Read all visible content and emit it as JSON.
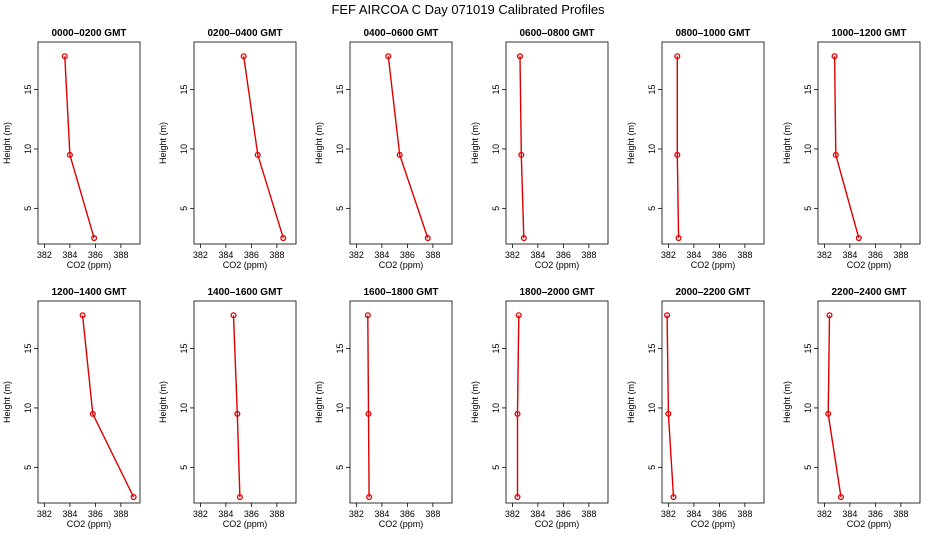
{
  "figure_title": "FEF AIRCOA C  Day 071019  Calibrated Profiles",
  "colors": {
    "series": "#dd0000",
    "axes": "#000000"
  },
  "chart_data": [
    {
      "type": "line",
      "title": "0000–0200 GMT",
      "xlabel": "CO2 (ppm)",
      "ylabel": "Height (m)",
      "xlim": [
        381.5,
        389.5
      ],
      "ylim": [
        2,
        19
      ],
      "xticks": [
        382,
        384,
        386,
        388
      ],
      "yticks": [
        5,
        10,
        15
      ],
      "series": [
        {
          "x": [
            385.9,
            384.0,
            383.6
          ],
          "y": [
            2.5,
            9.5,
            17.8
          ]
        }
      ]
    },
    {
      "type": "line",
      "title": "0200–0400 GMT",
      "xlabel": "CO2 (ppm)",
      "ylabel": "Height (m)",
      "xlim": [
        381.5,
        389.5
      ],
      "ylim": [
        2,
        19
      ],
      "xticks": [
        382,
        384,
        386,
        388
      ],
      "yticks": [
        5,
        10,
        15
      ],
      "series": [
        {
          "x": [
            388.5,
            386.5,
            385.4
          ],
          "y": [
            2.5,
            9.5,
            17.8
          ]
        }
      ]
    },
    {
      "type": "line",
      "title": "0400–0600 GMT",
      "xlabel": "CO2 (ppm)",
      "ylabel": "Height (m)",
      "xlim": [
        381.5,
        389.5
      ],
      "ylim": [
        2,
        19
      ],
      "xticks": [
        382,
        384,
        386,
        388
      ],
      "yticks": [
        5,
        10,
        15
      ],
      "series": [
        {
          "x": [
            387.6,
            385.4,
            384.5
          ],
          "y": [
            2.5,
            9.5,
            17.8
          ]
        }
      ]
    },
    {
      "type": "line",
      "title": "0600–0800 GMT",
      "xlabel": "CO2 (ppm)",
      "ylabel": "Height (m)",
      "xlim": [
        381.5,
        389.5
      ],
      "ylim": [
        2,
        19
      ],
      "xticks": [
        382,
        384,
        386,
        388
      ],
      "yticks": [
        5,
        10,
        15
      ],
      "series": [
        {
          "x": [
            382.9,
            382.7,
            382.6
          ],
          "y": [
            2.5,
            9.5,
            17.8
          ]
        }
      ]
    },
    {
      "type": "line",
      "title": "0800–1000 GMT",
      "xlabel": "CO2 (ppm)",
      "ylabel": "Height (m)",
      "xlim": [
        381.5,
        389.5
      ],
      "ylim": [
        2,
        19
      ],
      "xticks": [
        382,
        384,
        386,
        388
      ],
      "yticks": [
        5,
        10,
        15
      ],
      "series": [
        {
          "x": [
            382.8,
            382.7,
            382.7
          ],
          "y": [
            2.5,
            9.5,
            17.8
          ]
        }
      ]
    },
    {
      "type": "line",
      "title": "1000–1200 GMT",
      "xlabel": "CO2 (ppm)",
      "ylabel": "Height (m)",
      "xlim": [
        381.5,
        389.5
      ],
      "ylim": [
        2,
        19
      ],
      "xticks": [
        382,
        384,
        386,
        388
      ],
      "yticks": [
        5,
        10,
        15
      ],
      "series": [
        {
          "x": [
            384.7,
            382.9,
            382.8
          ],
          "y": [
            2.5,
            9.5,
            17.8
          ]
        }
      ]
    },
    {
      "type": "line",
      "title": "1200–1400 GMT",
      "xlabel": "CO2 (ppm)",
      "ylabel": "Height (m)",
      "xlim": [
        381.5,
        389.5
      ],
      "ylim": [
        2,
        19
      ],
      "xticks": [
        382,
        384,
        386,
        388
      ],
      "yticks": [
        5,
        10,
        15
      ],
      "series": [
        {
          "x": [
            389.0,
            385.8,
            385.0
          ],
          "y": [
            2.5,
            9.5,
            17.8
          ]
        }
      ]
    },
    {
      "type": "line",
      "title": "1400–1600 GMT",
      "xlabel": "CO2 (ppm)",
      "ylabel": "Height (m)",
      "xlim": [
        381.5,
        389.5
      ],
      "ylim": [
        2,
        19
      ],
      "xticks": [
        382,
        384,
        386,
        388
      ],
      "yticks": [
        5,
        10,
        15
      ],
      "series": [
        {
          "x": [
            385.1,
            384.9,
            384.6
          ],
          "y": [
            2.5,
            9.5,
            17.8
          ]
        }
      ]
    },
    {
      "type": "line",
      "title": "1600–1800 GMT",
      "xlabel": "CO2 (ppm)",
      "ylabel": "Height (m)",
      "xlim": [
        381.5,
        389.5
      ],
      "ylim": [
        2,
        19
      ],
      "xticks": [
        382,
        384,
        386,
        388
      ],
      "yticks": [
        5,
        10,
        15
      ],
      "series": [
        {
          "x": [
            383.0,
            382.95,
            382.9
          ],
          "y": [
            2.5,
            9.5,
            17.8
          ]
        }
      ]
    },
    {
      "type": "line",
      "title": "1800–2000 GMT",
      "xlabel": "CO2 (ppm)",
      "ylabel": "Height (m)",
      "xlim": [
        381.5,
        389.5
      ],
      "ylim": [
        2,
        19
      ],
      "xticks": [
        382,
        384,
        386,
        388
      ],
      "yticks": [
        5,
        10,
        15
      ],
      "series": [
        {
          "x": [
            382.4,
            382.4,
            382.5
          ],
          "y": [
            2.5,
            9.5,
            17.8
          ]
        }
      ]
    },
    {
      "type": "line",
      "title": "2000–2200 GMT",
      "xlabel": "CO2 (ppm)",
      "ylabel": "Height (m)",
      "xlim": [
        381.5,
        389.5
      ],
      "ylim": [
        2,
        19
      ],
      "xticks": [
        382,
        384,
        386,
        388
      ],
      "yticks": [
        5,
        10,
        15
      ],
      "series": [
        {
          "x": [
            382.4,
            382.0,
            381.9
          ],
          "y": [
            2.5,
            9.5,
            17.8
          ]
        }
      ]
    },
    {
      "type": "line",
      "title": "2200–2400 GMT",
      "xlabel": "CO2 (ppm)",
      "ylabel": "Height (m)",
      "xlim": [
        381.5,
        389.5
      ],
      "ylim": [
        2,
        19
      ],
      "xticks": [
        382,
        384,
        386,
        388
      ],
      "yticks": [
        5,
        10,
        15
      ],
      "series": [
        {
          "x": [
            383.3,
            382.3,
            382.4
          ],
          "y": [
            2.5,
            9.5,
            17.8
          ]
        }
      ]
    }
  ]
}
